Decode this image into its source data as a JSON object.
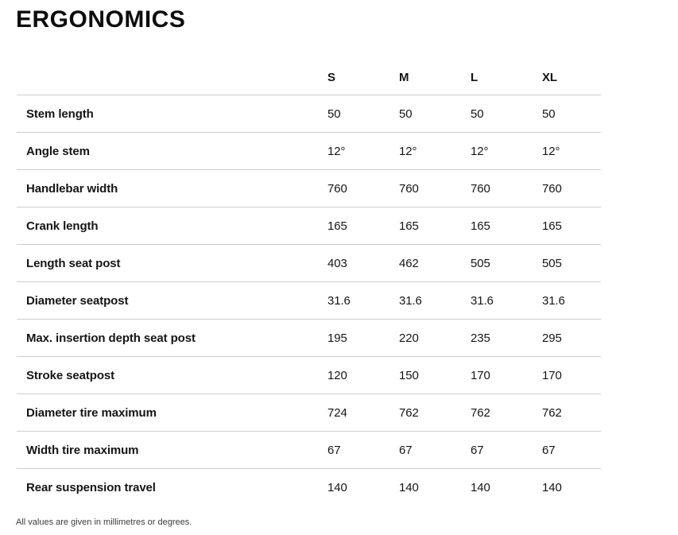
{
  "page": {
    "title": "ERGONOMICS",
    "footnote": "All values are given in millimetres or degrees."
  },
  "table": {
    "size_headers": [
      "S",
      "M",
      "L",
      "XL"
    ],
    "rows": [
      {
        "label": "Stem length",
        "values": [
          "50",
          "50",
          "50",
          "50"
        ]
      },
      {
        "label": "Angle stem",
        "values": [
          "12°",
          "12°",
          "12°",
          "12°"
        ]
      },
      {
        "label": "Handlebar width",
        "values": [
          "760",
          "760",
          "760",
          "760"
        ]
      },
      {
        "label": "Crank length",
        "values": [
          "165",
          "165",
          "165",
          "165"
        ]
      },
      {
        "label": "Length seat post",
        "values": [
          "403",
          "462",
          "505",
          "505"
        ]
      },
      {
        "label": "Diameter seatpost",
        "values": [
          "31.6",
          "31.6",
          "31.6",
          "31.6"
        ]
      },
      {
        "label": "Max. insertion depth seat post",
        "values": [
          "195",
          "220",
          "235",
          "295"
        ]
      },
      {
        "label": "Stroke seatpost",
        "values": [
          "120",
          "150",
          "170",
          "170"
        ]
      },
      {
        "label": "Diameter tire maximum",
        "values": [
          "724",
          "762",
          "762",
          "762"
        ]
      },
      {
        "label": "Width tire maximum",
        "values": [
          "67",
          "67",
          "67",
          "67"
        ]
      },
      {
        "label": "Rear suspension travel",
        "values": [
          "140",
          "140",
          "140",
          "140"
        ]
      }
    ]
  }
}
